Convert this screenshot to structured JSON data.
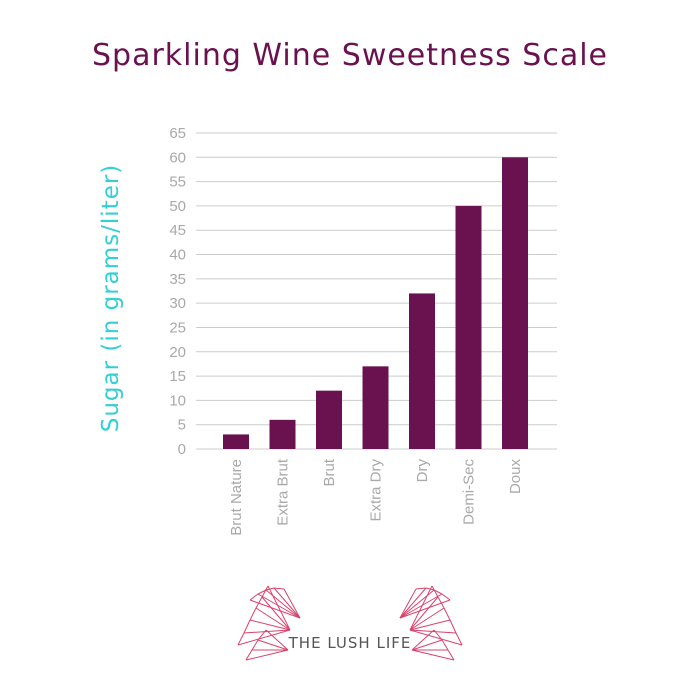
{
  "title": "Sparkling Wine Sweetness Scale",
  "ylabel": "Sugar (in grams/liter)",
  "logo_text": "THE LUSH LIFE",
  "colors": {
    "bar": "#6a1150",
    "title": "#6a1150",
    "ylabel": "#33cfd6",
    "tick": "#a9a9a9",
    "grid": "#cccccc",
    "logo_line": "#d8436b"
  },
  "chart_data": {
    "type": "bar",
    "title": "Sparkling Wine Sweetness Scale",
    "xlabel": "",
    "ylabel": "Sugar (in grams/liter)",
    "categories": [
      "Brut Nature",
      "Extra Brut",
      "Brut",
      "Extra Dry",
      "Dry",
      "Demi-Sec",
      "Doux"
    ],
    "values": [
      3,
      6,
      12,
      17,
      32,
      50,
      60
    ],
    "ylim": [
      0,
      65
    ],
    "yticks": [
      0,
      5,
      10,
      15,
      20,
      25,
      30,
      35,
      40,
      45,
      50,
      55,
      60,
      65
    ],
    "grid": true,
    "legend": "none"
  }
}
